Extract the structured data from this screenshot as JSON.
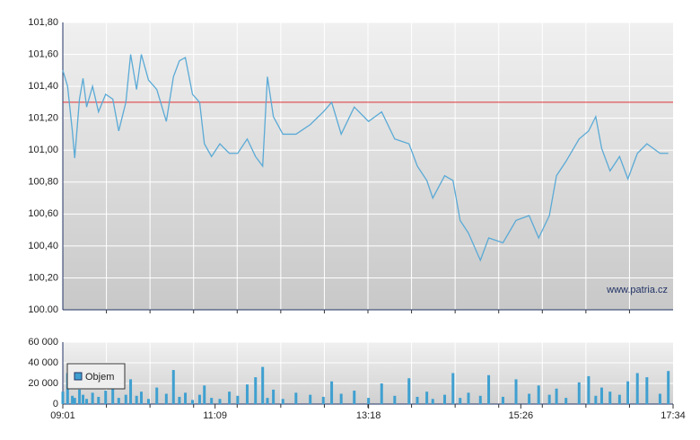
{
  "chart_data": [
    {
      "type": "line",
      "annotation": "www.patria.cz",
      "x": [
        "09:01",
        "09:05",
        "09:09",
        "09:11",
        "09:15",
        "09:18",
        "09:21",
        "09:26",
        "09:31",
        "09:37",
        "09:43",
        "09:48",
        "09:54",
        "09:58",
        "10:03",
        "10:07",
        "10:13",
        "10:20",
        "10:28",
        "10:34",
        "10:39",
        "10:44",
        "10:50",
        "10:56",
        "11:00",
        "11:06",
        "11:13",
        "11:21",
        "11:28",
        "11:36",
        "11:43",
        "11:49",
        "11:53",
        "11:58",
        "12:06",
        "12:17",
        "12:29",
        "12:40",
        "12:47",
        "12:55",
        "13:06",
        "13:18",
        "13:29",
        "13:40",
        "13:52",
        "13:59",
        "14:07",
        "14:12",
        "14:22",
        "14:29",
        "14:35",
        "14:42",
        "14:52",
        "14:59",
        "15:11",
        "15:22",
        "15:33",
        "15:41",
        "15:50",
        "15:56",
        "16:04",
        "16:15",
        "16:23",
        "16:29",
        "16:34",
        "16:41",
        "16:49",
        "16:56",
        "17:04",
        "17:12",
        "17:23",
        "17:30"
      ],
      "values": [
        101.5,
        101.4,
        101.12,
        100.95,
        101.32,
        101.45,
        101.27,
        101.4,
        101.24,
        101.35,
        101.32,
        101.12,
        101.3,
        101.6,
        101.38,
        101.6,
        101.44,
        101.38,
        101.18,
        101.46,
        101.56,
        101.58,
        101.35,
        101.3,
        101.04,
        100.96,
        101.04,
        100.98,
        100.98,
        101.07,
        100.96,
        100.9,
        101.46,
        101.21,
        101.1,
        101.1,
        101.16,
        101.24,
        101.3,
        101.1,
        101.27,
        101.18,
        101.24,
        101.07,
        101.04,
        100.9,
        100.81,
        100.7,
        100.84,
        100.81,
        100.56,
        100.48,
        100.31,
        100.45,
        100.42,
        100.56,
        100.59,
        100.45,
        100.59,
        100.84,
        100.93,
        101.07,
        101.12,
        101.21,
        101.01,
        100.87,
        100.96,
        100.82,
        100.98,
        101.04,
        100.98,
        100.98
      ],
      "color": "#5aaad6",
      "reference_line": {
        "value": 101.3,
        "color": "#e03030"
      },
      "xlim": [
        "09:01",
        "17:34"
      ],
      "ylim": [
        100,
        101.8
      ],
      "yticks": [
        {
          "value": 100,
          "label": "100.00"
        },
        {
          "value": 100.2,
          "label": "100,20"
        },
        {
          "value": 100.4,
          "label": "100,40"
        },
        {
          "value": 100.6,
          "label": "100,60"
        },
        {
          "value": 100.8,
          "label": "100,80"
        },
        {
          "value": 101,
          "label": "101,00"
        },
        {
          "value": 101.2,
          "label": "101,20"
        },
        {
          "value": 101.4,
          "label": "101,40"
        },
        {
          "value": 101.6,
          "label": "101,60"
        },
        {
          "value": 101.8,
          "label": "101,80"
        }
      ],
      "grid": true
    },
    {
      "type": "bar",
      "x": [
        "09:01",
        "09:05",
        "09:09",
        "09:11",
        "09:15",
        "09:18",
        "09:21",
        "09:26",
        "09:31",
        "09:37",
        "09:43",
        "09:48",
        "09:54",
        "09:58",
        "10:03",
        "10:07",
        "10:13",
        "10:20",
        "10:28",
        "10:34",
        "10:39",
        "10:44",
        "10:50",
        "10:56",
        "11:00",
        "11:06",
        "11:13",
        "11:21",
        "11:28",
        "11:36",
        "11:43",
        "11:49",
        "11:53",
        "11:58",
        "12:06",
        "12:17",
        "12:29",
        "12:40",
        "12:47",
        "12:55",
        "13:06",
        "13:18",
        "13:29",
        "13:40",
        "13:52",
        "13:59",
        "14:07",
        "14:12",
        "14:22",
        "14:29",
        "14:35",
        "14:42",
        "14:52",
        "14:59",
        "15:11",
        "15:22",
        "15:33",
        "15:41",
        "15:50",
        "15:56",
        "16:04",
        "16:15",
        "16:23",
        "16:29",
        "16:34",
        "16:41",
        "16:49",
        "16:56",
        "17:04",
        "17:12",
        "17:23",
        "17:30"
      ],
      "series": [
        {
          "name": "Objem",
          "color": "#3fa0d0",
          "values": [
            12000,
            30000,
            8000,
            6000,
            14000,
            9000,
            5000,
            11000,
            7000,
            13000,
            20000,
            6000,
            9000,
            24000,
            8000,
            12000,
            5000,
            16000,
            10000,
            33000,
            7000,
            11000,
            4000,
            9000,
            18000,
            6000,
            5000,
            12000,
            8000,
            19000,
            26000,
            36000,
            6000,
            14000,
            5000,
            11000,
            9000,
            7000,
            22000,
            10000,
            13000,
            6000,
            20000,
            8000,
            25000,
            7000,
            12000,
            5000,
            9000,
            30000,
            6000,
            11000,
            8000,
            28000,
            7000,
            24000,
            10000,
            18000,
            9000,
            15000,
            6000,
            21000,
            27000,
            8000,
            16000,
            12000,
            9000,
            22000,
            30000,
            26000,
            10000,
            32000
          ]
        }
      ],
      "xlim": [
        "09:01",
        "17:34"
      ],
      "xticks": [
        "09:01",
        "11:09",
        "13:18",
        "15:26",
        "17:34"
      ],
      "ylim": [
        0,
        60000
      ],
      "yticks": [
        0,
        {
          "value": 20000,
          "label": "20 000"
        },
        {
          "value": 40000,
          "label": "40 000"
        },
        {
          "value": 60000,
          "label": "60 000"
        }
      ],
      "grid": true
    }
  ]
}
